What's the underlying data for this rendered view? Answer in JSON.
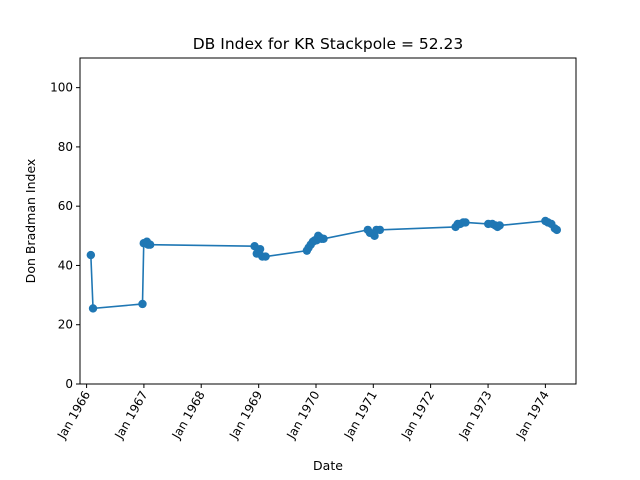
{
  "chart_data": {
    "type": "line",
    "title": "DB Index for KR Stackpole = 52.23",
    "xlabel": "Date",
    "ylabel": "Don Bradman Index",
    "ylim": [
      0,
      110
    ],
    "xlim": [
      "1965-11-20",
      "1974-07-15"
    ],
    "yticks": [
      0,
      20,
      40,
      60,
      80,
      100
    ],
    "xticks": [
      "Jan 1966",
      "Jan 1967",
      "Jan 1968",
      "Jan 1969",
      "Jan 1970",
      "Jan 1971",
      "Jan 1972",
      "Jan 1973",
      "Jan 1974"
    ],
    "xtick_dates": [
      "1966-01-01",
      "1967-01-01",
      "1968-01-01",
      "1969-01-01",
      "1970-01-01",
      "1971-01-01",
      "1972-01-01",
      "1973-01-01",
      "1974-01-01"
    ],
    "grid": false,
    "legend": "none",
    "color": "#1f77b4",
    "series": [
      {
        "x": [
          "1966-01-28",
          "1966-02-11",
          "1966-12-23",
          "1966-12-31",
          "1967-01-20",
          "1967-01-28",
          "1967-02-10",
          "1968-12-06",
          "1968-12-20",
          "1969-01-10",
          "1969-01-24",
          "1969-02-14",
          "1969-11-04",
          "1969-11-15",
          "1969-11-28",
          "1969-12-12",
          "1969-12-25",
          "1970-01-05",
          "1970-01-15",
          "1970-01-25",
          "1970-02-05",
          "1970-02-18",
          "1970-11-27",
          "1970-12-11",
          "1971-01-09",
          "1971-01-21",
          "1971-02-12",
          "1972-06-08",
          "1972-06-22",
          "1972-07-08",
          "1972-07-27",
          "1972-08-10",
          "1973-01-02",
          "1973-01-28",
          "1973-02-16",
          "1973-03-02",
          "1973-03-16",
          "1974-01-01",
          "1974-01-18",
          "1974-02-08",
          "1974-03-02",
          "1974-03-15"
        ],
        "y": [
          43.5,
          25.5,
          27.0,
          47.5,
          48.0,
          47.0,
          47.0,
          46.5,
          44.0,
          45.5,
          43.0,
          43.0,
          45.0,
          46.0,
          47.0,
          48.0,
          48.5,
          48.5,
          50.0,
          49.5,
          49.0,
          49.0,
          52.0,
          51.0,
          50.0,
          52.0,
          52.0,
          53.0,
          54.0,
          54.0,
          54.5,
          54.5,
          54.0,
          54.0,
          53.5,
          53.0,
          53.5,
          55.0,
          54.5,
          54.0,
          52.5,
          52.0
        ]
      }
    ]
  }
}
